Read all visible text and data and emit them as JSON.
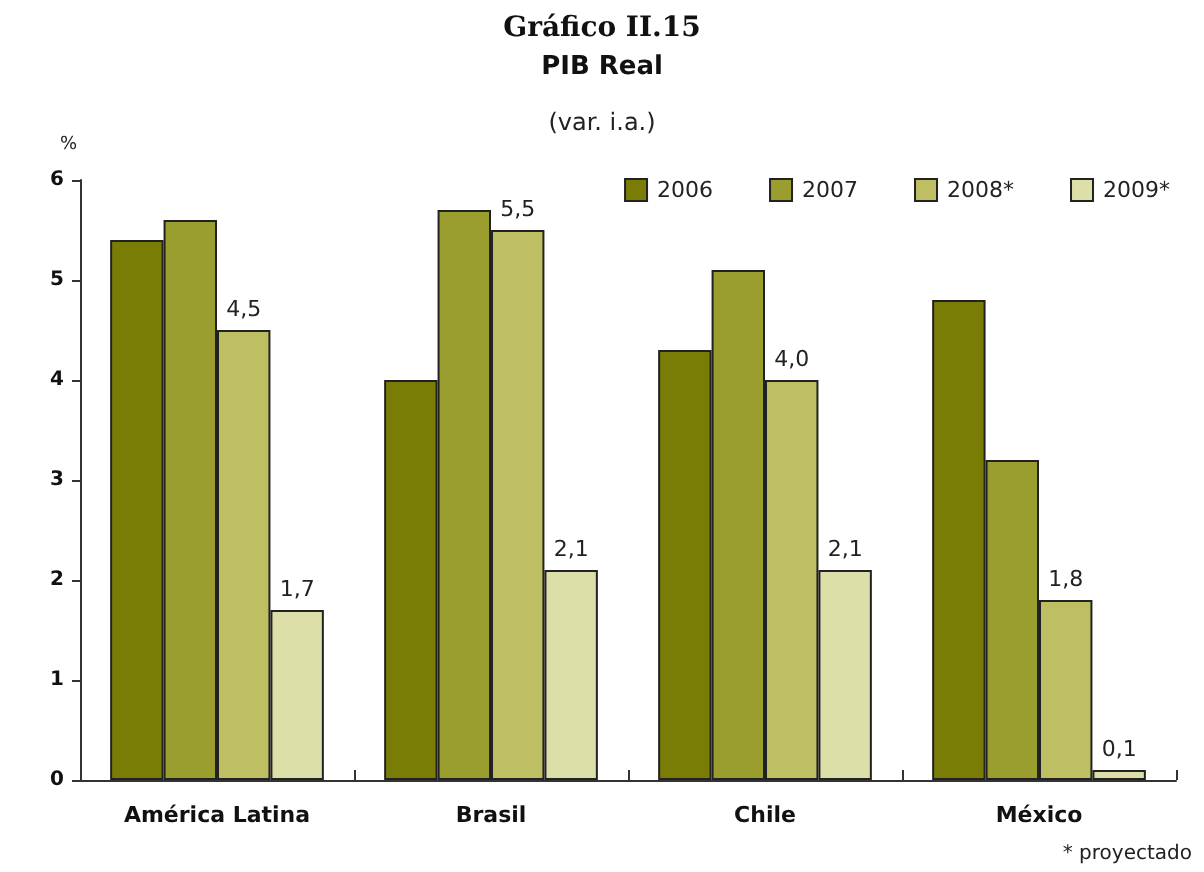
{
  "chart_data": {
    "type": "bar",
    "title": "Gráfico II.15",
    "subtitle": "PIB Real",
    "ylabel": "%",
    "annotations": [
      "(var. i.a.)",
      "* proyectado"
    ],
    "categories": [
      "América Latina",
      "Brasil",
      "Chile",
      "México"
    ],
    "series": [
      {
        "name": "2006",
        "color": "#7a7d05",
        "values": [
          5.4,
          4.0,
          4.3,
          4.8
        ]
      },
      {
        "name": "2007",
        "color": "#9a9e2f",
        "values": [
          5.6,
          5.7,
          5.1,
          3.2
        ]
      },
      {
        "name": "2008*",
        "color": "#bdbf62",
        "values": [
          4.5,
          5.5,
          4.0,
          1.8
        ],
        "value_labels": [
          "4,5",
          "5,5",
          "4,0",
          "1,8"
        ]
      },
      {
        "name": "2009*",
        "color": "#dcdfa8",
        "values": [
          1.7,
          2.1,
          2.1,
          0.1
        ],
        "value_labels": [
          "1,7",
          "2,1",
          "2,1",
          "0,1"
        ]
      }
    ],
    "ylim": [
      0,
      6
    ],
    "yticks": [
      0,
      1,
      2,
      3,
      4,
      5,
      6
    ],
    "grid": false,
    "legend": "top right"
  }
}
